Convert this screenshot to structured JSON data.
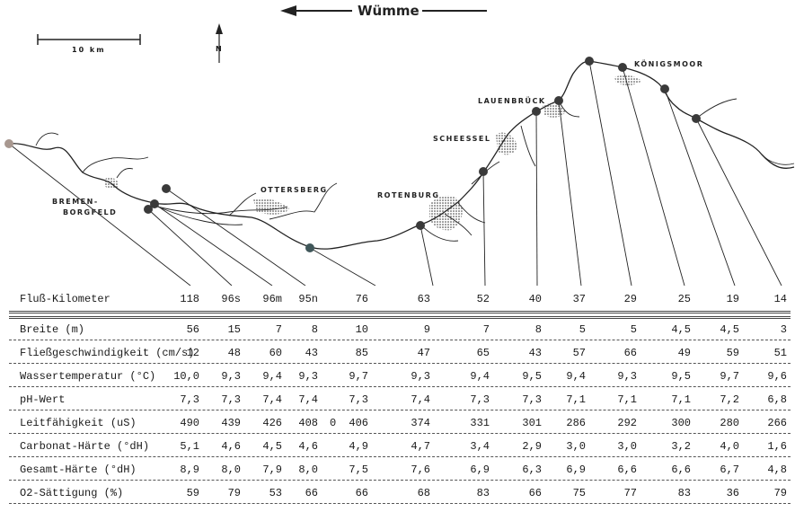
{
  "map": {
    "river_title": "Wümme",
    "scale_label": "10 km",
    "north_label": "N",
    "places": [
      {
        "id": "bremen1",
        "name": "BREMEN-"
      },
      {
        "id": "bremen2",
        "name": "BORGFELD"
      },
      {
        "id": "ottersberg",
        "name": "OTTERSBERG"
      },
      {
        "id": "rotenburg",
        "name": "ROTENBURG"
      },
      {
        "id": "scheessel",
        "name": "SCHEESSEL"
      },
      {
        "id": "lauenbrueck",
        "name": "LAUENBRÜCK"
      },
      {
        "id": "koenigsmoor",
        "name": "KÖNIGSMOOR"
      }
    ]
  },
  "table": {
    "header_row": {
      "label": "Fluß-Kilometer",
      "values": [
        "118",
        "96s",
        "96m",
        "95n",
        "76",
        "63",
        "52",
        "40",
        "37",
        "29",
        "25",
        "19",
        "14"
      ]
    },
    "rows": [
      {
        "label": "Breite (m)",
        "values": [
          "56",
          "15",
          "7",
          "8",
          "10",
          "9",
          "7",
          "8",
          "5",
          "5",
          "4,5",
          "4,5",
          "3"
        ]
      },
      {
        "label": "Fließgeschwindigkeit (cm/s)",
        "values": [
          "12",
          "48",
          "60",
          "43",
          "85",
          "47",
          "65",
          "43",
          "57",
          "66",
          "49",
          "59",
          "51"
        ]
      },
      {
        "label": "Wassertemperatur (°C)",
        "values": [
          "10,0",
          "9,3",
          "9,4",
          "9,3",
          "9,7",
          "9,3",
          "9,4",
          "9,5",
          "9,4",
          "9,3",
          "9,5",
          "9,7",
          "9,6"
        ]
      },
      {
        "label": "pH-Wert",
        "values": [
          "7,3",
          "7,3",
          "7,4",
          "7,4",
          "7,3",
          "7,4",
          "7,3",
          "7,3",
          "7,1",
          "7,1",
          "7,1",
          "7,2",
          "6,8"
        ]
      },
      {
        "label": "Leitfähigkeit (uS)",
        "values": [
          "490",
          "439",
          "426",
          "408",
          "406",
          "374",
          "331",
          "301",
          "286",
          "292",
          "300",
          "280",
          "266"
        ]
      },
      {
        "label": "Carbonat-Härte (°dH)",
        "values": [
          "5,1",
          "4,6",
          "4,5",
          "4,6",
          "4,9",
          "4,7",
          "3,4",
          "2,9",
          "3,0",
          "3,0",
          "3,2",
          "4,0",
          "1,6"
        ]
      },
      {
        "label": "Gesamt-Härte (°dH)",
        "values": [
          "8,9",
          "8,0",
          "7,9",
          "8,0",
          "7,5",
          "7,6",
          "6,9",
          "6,3",
          "6,9",
          "6,6",
          "6,6",
          "6,7",
          "4,8"
        ]
      },
      {
        "label": "O2-Sättigung (%)",
        "values": [
          "59",
          "79",
          "53",
          "66",
          "66",
          "68",
          "83",
          "66",
          "75",
          "77",
          "83",
          "36",
          "79"
        ]
      }
    ],
    "stray_mark": "0"
  }
}
